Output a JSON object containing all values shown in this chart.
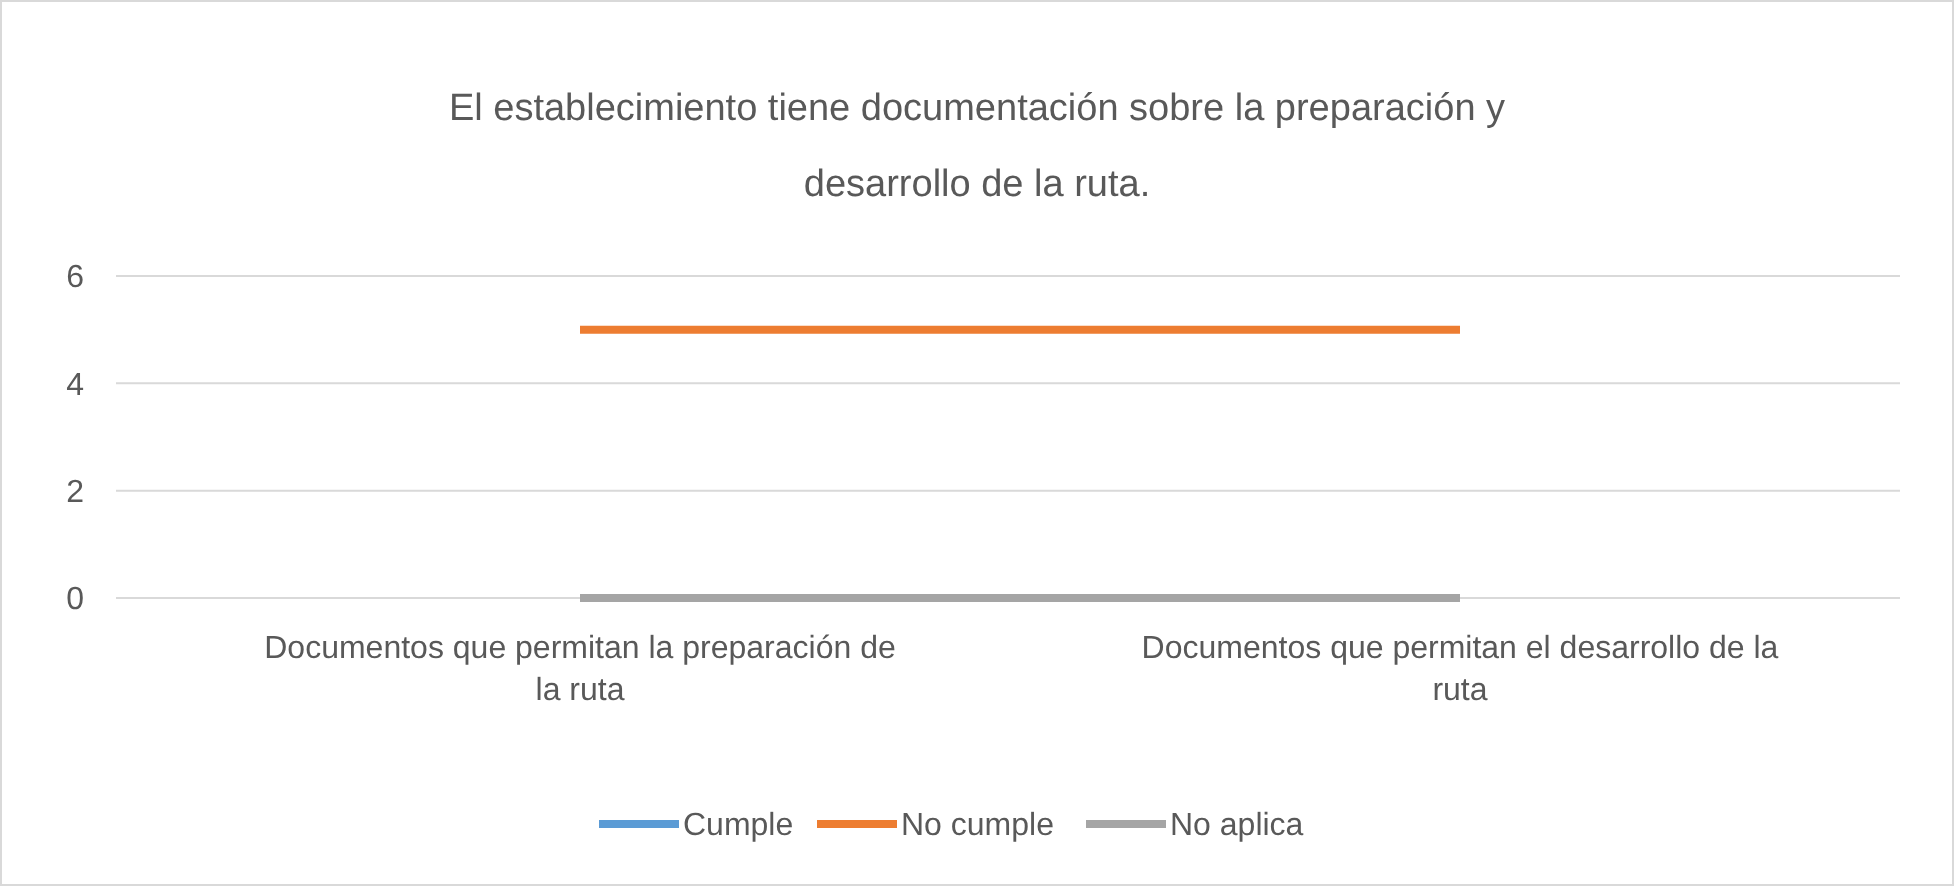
{
  "chart_data": {
    "type": "line",
    "title": "El establecimiento tiene documentación sobre la preparación y desarrollo de la ruta.",
    "categories": [
      "Documentos que permitan la preparación de la ruta",
      "Documentos que permitan el desarrollo de la ruta"
    ],
    "series": [
      {
        "name": "Cumple",
        "color": "#5b9bd5",
        "values": [
          null,
          null
        ]
      },
      {
        "name": "No cumple",
        "color": "#ed7d31",
        "values": [
          5,
          5
        ]
      },
      {
        "name": "No aplica",
        "color": "#a5a5a5",
        "values": [
          0,
          0
        ]
      }
    ],
    "ylim": [
      0,
      6
    ],
    "yticks": [
      0,
      2,
      4,
      6
    ],
    "grid": "y",
    "legend": "bottom",
    "marker": "none",
    "line_style": "solid"
  }
}
